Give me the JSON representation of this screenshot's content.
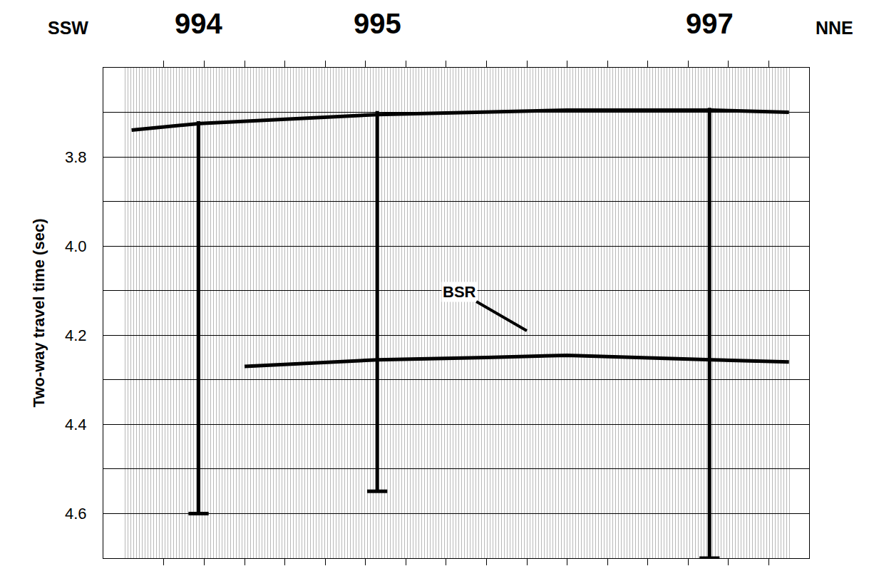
{
  "chart_data": {
    "type": "seismic_section",
    "ylabel": "Two-way travel time (sec)",
    "direction_labels": [
      "SSW",
      "NNE"
    ],
    "xlim": [
      -1.5,
      16
    ],
    "xticks": [
      0,
      1,
      2,
      3,
      4,
      5,
      6,
      7,
      8,
      9,
      10,
      11,
      12,
      13,
      14,
      15
    ],
    "ylim": [
      4.7,
      3.6
    ],
    "yticks": [
      3.8,
      {
        "value": 4,
        "label": "4.0"
      },
      4.2,
      4.4,
      4.6
    ],
    "grid": true,
    "tick_labels": "y",
    "series": [
      {
        "type": "line",
        "color": "#000000",
        "x": [
          -0.8,
          0.9,
          5.3,
          10,
          13.6,
          15.5
        ],
        "values": [
          3.74,
          3.725,
          3.705,
          3.695,
          3.695,
          3.7
        ]
      },
      {
        "type": "line",
        "color": "#000000",
        "x": [
          2,
          5.3,
          8,
          10,
          13.6,
          15.5
        ],
        "values": [
          4.27,
          4.255,
          4.25,
          4.245,
          4.255,
          4.26
        ]
      }
    ],
    "sites": [
      {
        "label": "994",
        "x": 0.86,
        "top": 3.72,
        "bottom": 4.6
      },
      {
        "label": "995",
        "x": 5.29,
        "top": 3.697,
        "bottom": 4.55
      },
      {
        "label": "997",
        "x": 13.53,
        "top": 3.69,
        "bottom": 4.7
      }
    ],
    "annotations": [
      {
        "text": "BSR",
        "x": 9.0,
        "y": 4.19
      }
    ]
  }
}
